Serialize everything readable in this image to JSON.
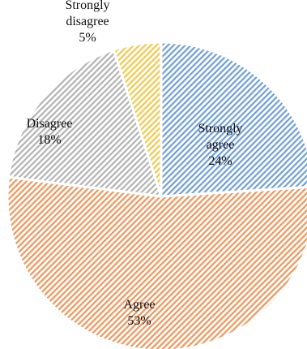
{
  "chart_data": {
    "type": "pie",
    "title": "",
    "start_angle_deg": 0,
    "direction": "clockwise",
    "fill_pattern": "diagonal-hatch",
    "slices": [
      {
        "label_lines": [
          "Strongly",
          "agree"
        ],
        "percent_label": "24%",
        "value": 24,
        "color": "#6f9fd8"
      },
      {
        "label_lines": [
          "Agree"
        ],
        "percent_label": "53%",
        "value": 53,
        "color": "#f0955a"
      },
      {
        "label_lines": [
          "Disagree"
        ],
        "percent_label": "18%",
        "value": 18,
        "color": "#b3b3b3"
      },
      {
        "label_lines": [
          "Strongly",
          "disagree"
        ],
        "percent_label": "5%",
        "value": 5,
        "color": "#f2c84b"
      }
    ]
  }
}
